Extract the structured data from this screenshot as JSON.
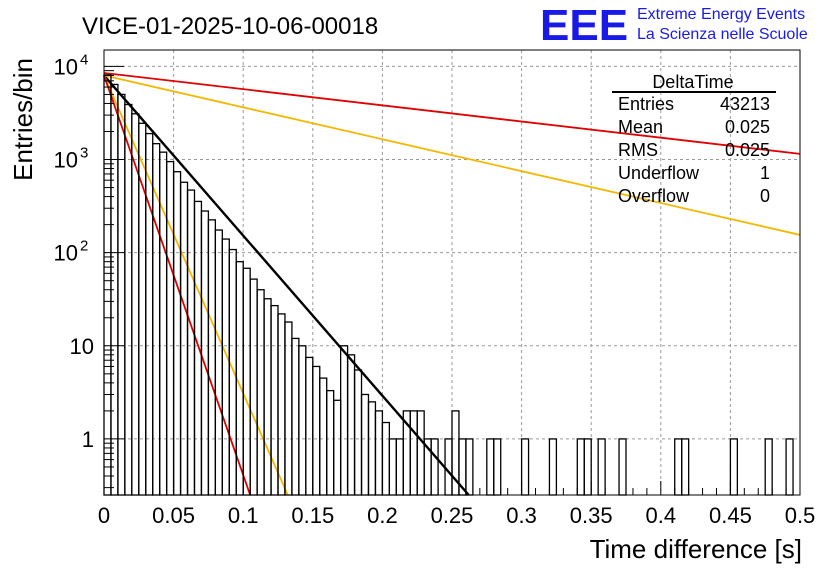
{
  "chart_data": {
    "type": "histogram",
    "title": "VICE-01-2025-10-06-00018",
    "xlabel": "Time difference [s]",
    "ylabel": "Entries/bin",
    "xlim": [
      0,
      0.5
    ],
    "ylim": [
      0.25,
      15000
    ],
    "yscale": "log",
    "grid": true,
    "x_ticks": [
      "0",
      "0.05",
      "0.1",
      "0.15",
      "0.2",
      "0.25",
      "0.3",
      "0.35",
      "0.4",
      "0.45",
      "0.5"
    ],
    "y_ticks": [
      {
        "value": 1,
        "base": "1",
        "exp": ""
      },
      {
        "value": 10,
        "base": "10",
        "exp": ""
      },
      {
        "value": 100,
        "base": "10",
        "exp": "2"
      },
      {
        "value": 1000,
        "base": "10",
        "exp": "3"
      },
      {
        "value": 10000,
        "base": "10",
        "exp": "4"
      }
    ],
    "histogram": {
      "name": "DeltaTime",
      "bin_width": 0.005,
      "bin_start": 0,
      "counts": [
        8100,
        6400,
        5000,
        3900,
        3100,
        2450,
        1900,
        1480,
        1200,
        950,
        740,
        570,
        470,
        355,
        280,
        225,
        175,
        140,
        108,
        80,
        68,
        52,
        40,
        32,
        27,
        22,
        18,
        12,
        10,
        7.5,
        6,
        4.5,
        3.3,
        2.6,
        10,
        8,
        5.5,
        3,
        2.5,
        2,
        1.5,
        1,
        1,
        2,
        2,
        2,
        1,
        1,
        0,
        1,
        2,
        1,
        1,
        0,
        0,
        1,
        1,
        0,
        0,
        0,
        1,
        0,
        0,
        0,
        1,
        0,
        0,
        0,
        1,
        1,
        0,
        1,
        0,
        0,
        1,
        0,
        0,
        0,
        0,
        0,
        0,
        0,
        1,
        1,
        0,
        0,
        0,
        0,
        0,
        0,
        1,
        0,
        0,
        0,
        0,
        1,
        0,
        0,
        1,
        0
      ]
    },
    "series": [
      {
        "name": "fit",
        "color": "#000000",
        "x": [
          0,
          0.262
        ],
        "y": [
          8000,
          0.25
        ]
      },
      {
        "name": "red-upper",
        "color": "#e00000",
        "x": [
          0,
          0.5
        ],
        "y": [
          8500,
          1150
        ]
      },
      {
        "name": "orange-upper",
        "color": "#f5b800",
        "x": [
          0,
          0.5
        ],
        "y": [
          8000,
          155
        ]
      },
      {
        "name": "orange-lower",
        "color": "#f5b800",
        "x": [
          0,
          0.132
        ],
        "y": [
          8000,
          0.25
        ]
      },
      {
        "name": "red-lower",
        "color": "#e00000",
        "x": [
          0,
          0.105
        ],
        "y": [
          8000,
          0.25
        ]
      }
    ],
    "stats_box": {
      "title": "DeltaTime",
      "rows": [
        {
          "label": "Entries",
          "value": "43213"
        },
        {
          "label": "Mean",
          "value": "0.025"
        },
        {
          "label": "RMS",
          "value": "0.025"
        },
        {
          "label": "Underflow",
          "value": "1"
        },
        {
          "label": "Overflow",
          "value": "0"
        }
      ]
    }
  },
  "logo": {
    "mark": "EEE",
    "line1": "Extreme Energy Events",
    "line2": "La Scienza nelle Scuole",
    "color": "#1a1ae6"
  }
}
